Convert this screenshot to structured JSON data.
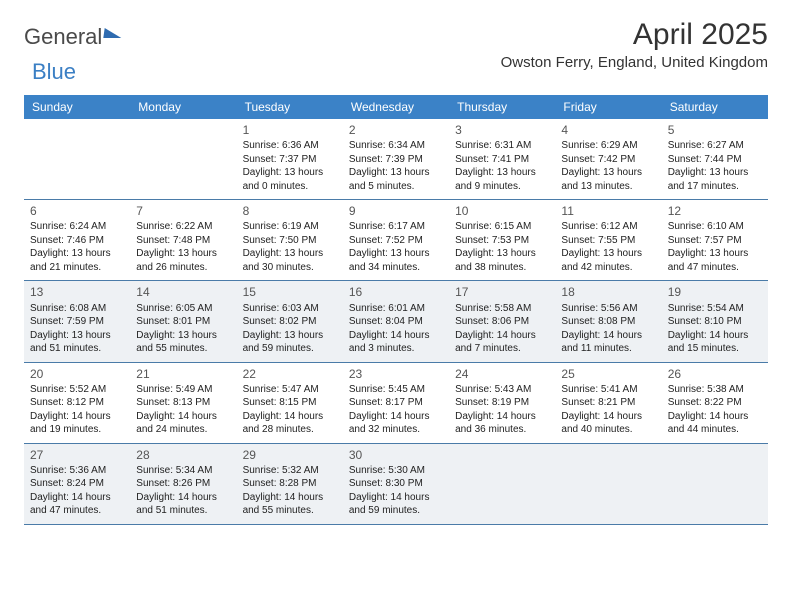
{
  "branding": {
    "word1": "General",
    "word2": "Blue"
  },
  "title": "April 2025",
  "location": "Owston Ferry, England, United Kingdom",
  "colors": {
    "header_bg": "#3b82c7",
    "header_text": "#ffffff",
    "border": "#4a7ba8",
    "shaded": "#eef1f4",
    "body_text": "#222222"
  },
  "day_names": [
    "Sunday",
    "Monday",
    "Tuesday",
    "Wednesday",
    "Thursday",
    "Friday",
    "Saturday"
  ],
  "weeks": [
    [
      null,
      null,
      {
        "n": "1",
        "sr": "6:36 AM",
        "ss": "7:37 PM",
        "dl": "13 hours and 0 minutes."
      },
      {
        "n": "2",
        "sr": "6:34 AM",
        "ss": "7:39 PM",
        "dl": "13 hours and 5 minutes."
      },
      {
        "n": "3",
        "sr": "6:31 AM",
        "ss": "7:41 PM",
        "dl": "13 hours and 9 minutes."
      },
      {
        "n": "4",
        "sr": "6:29 AM",
        "ss": "7:42 PM",
        "dl": "13 hours and 13 minutes."
      },
      {
        "n": "5",
        "sr": "6:27 AM",
        "ss": "7:44 PM",
        "dl": "13 hours and 17 minutes."
      }
    ],
    [
      {
        "n": "6",
        "sr": "6:24 AM",
        "ss": "7:46 PM",
        "dl": "13 hours and 21 minutes."
      },
      {
        "n": "7",
        "sr": "6:22 AM",
        "ss": "7:48 PM",
        "dl": "13 hours and 26 minutes."
      },
      {
        "n": "8",
        "sr": "6:19 AM",
        "ss": "7:50 PM",
        "dl": "13 hours and 30 minutes."
      },
      {
        "n": "9",
        "sr": "6:17 AM",
        "ss": "7:52 PM",
        "dl": "13 hours and 34 minutes."
      },
      {
        "n": "10",
        "sr": "6:15 AM",
        "ss": "7:53 PM",
        "dl": "13 hours and 38 minutes."
      },
      {
        "n": "11",
        "sr": "6:12 AM",
        "ss": "7:55 PM",
        "dl": "13 hours and 42 minutes."
      },
      {
        "n": "12",
        "sr": "6:10 AM",
        "ss": "7:57 PM",
        "dl": "13 hours and 47 minutes."
      }
    ],
    [
      {
        "n": "13",
        "sr": "6:08 AM",
        "ss": "7:59 PM",
        "dl": "13 hours and 51 minutes."
      },
      {
        "n": "14",
        "sr": "6:05 AM",
        "ss": "8:01 PM",
        "dl": "13 hours and 55 minutes."
      },
      {
        "n": "15",
        "sr": "6:03 AM",
        "ss": "8:02 PM",
        "dl": "13 hours and 59 minutes."
      },
      {
        "n": "16",
        "sr": "6:01 AM",
        "ss": "8:04 PM",
        "dl": "14 hours and 3 minutes."
      },
      {
        "n": "17",
        "sr": "5:58 AM",
        "ss": "8:06 PM",
        "dl": "14 hours and 7 minutes."
      },
      {
        "n": "18",
        "sr": "5:56 AM",
        "ss": "8:08 PM",
        "dl": "14 hours and 11 minutes."
      },
      {
        "n": "19",
        "sr": "5:54 AM",
        "ss": "8:10 PM",
        "dl": "14 hours and 15 minutes."
      }
    ],
    [
      {
        "n": "20",
        "sr": "5:52 AM",
        "ss": "8:12 PM",
        "dl": "14 hours and 19 minutes."
      },
      {
        "n": "21",
        "sr": "5:49 AM",
        "ss": "8:13 PM",
        "dl": "14 hours and 24 minutes."
      },
      {
        "n": "22",
        "sr": "5:47 AM",
        "ss": "8:15 PM",
        "dl": "14 hours and 28 minutes."
      },
      {
        "n": "23",
        "sr": "5:45 AM",
        "ss": "8:17 PM",
        "dl": "14 hours and 32 minutes."
      },
      {
        "n": "24",
        "sr": "5:43 AM",
        "ss": "8:19 PM",
        "dl": "14 hours and 36 minutes."
      },
      {
        "n": "25",
        "sr": "5:41 AM",
        "ss": "8:21 PM",
        "dl": "14 hours and 40 minutes."
      },
      {
        "n": "26",
        "sr": "5:38 AM",
        "ss": "8:22 PM",
        "dl": "14 hours and 44 minutes."
      }
    ],
    [
      {
        "n": "27",
        "sr": "5:36 AM",
        "ss": "8:24 PM",
        "dl": "14 hours and 47 minutes."
      },
      {
        "n": "28",
        "sr": "5:34 AM",
        "ss": "8:26 PM",
        "dl": "14 hours and 51 minutes."
      },
      {
        "n": "29",
        "sr": "5:32 AM",
        "ss": "8:28 PM",
        "dl": "14 hours and 55 minutes."
      },
      {
        "n": "30",
        "sr": "5:30 AM",
        "ss": "8:30 PM",
        "dl": "14 hours and 59 minutes."
      },
      null,
      null,
      null
    ]
  ],
  "labels": {
    "sunrise": "Sunrise:",
    "sunset": "Sunset:",
    "daylight": "Daylight:"
  }
}
